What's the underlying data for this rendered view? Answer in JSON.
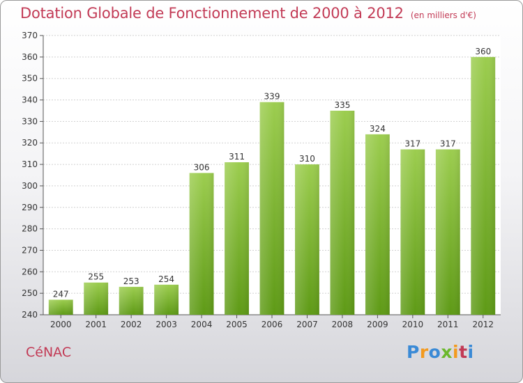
{
  "header": {
    "title": "Dotation Globale de Fonctionnement de 2000 à 2012",
    "subtitle": "(en milliers d'€)"
  },
  "footer": {
    "commune": "CéNAC",
    "logo_text": "Proxiti"
  },
  "colors": {
    "title": "#c23a55",
    "bar_top": "#9ccd4f",
    "bar_bottom": "#5e9a16",
    "grid": "#d0d0d0"
  },
  "chart_data": {
    "type": "bar",
    "categories": [
      "2000",
      "2001",
      "2002",
      "2003",
      "2004",
      "2005",
      "2006",
      "2007",
      "2008",
      "2009",
      "2010",
      "2011",
      "2012"
    ],
    "values": [
      247,
      255,
      253,
      254,
      306,
      311,
      339,
      310,
      335,
      324,
      317,
      317,
      360
    ],
    "data_labels": [
      "247",
      "255",
      "253",
      "254",
      "306",
      "311",
      "339",
      "310",
      "335",
      "324",
      "317",
      "317",
      "360"
    ],
    "yticks": [
      "240",
      "250",
      "260",
      "270",
      "280",
      "290",
      "300",
      "310",
      "320",
      "330",
      "340",
      "350",
      "360",
      "370"
    ],
    "ylim": [
      240,
      370
    ],
    "grid": true,
    "legend": "none"
  }
}
